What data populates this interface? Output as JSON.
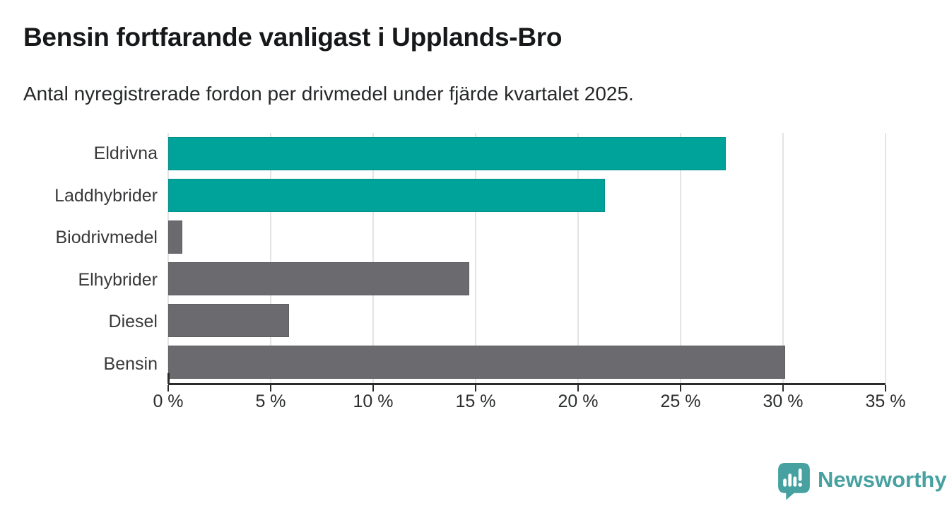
{
  "header": {
    "title": "Bensin fortfarande vanligast i Upplands-Bro",
    "subtitle": "Antal nyregistrerade fordon per drivmedel under fjärde kvartalet 2025."
  },
  "chart_data": {
    "type": "bar",
    "orientation": "horizontal",
    "title": "Bensin fortfarande vanligast i Upplands-Bro",
    "subtitle": "Antal nyregistrerade fordon per drivmedel under fjärde kvartalet 2025.",
    "categories": [
      "Eldrivna",
      "Laddhybrider",
      "Biodrivmedel",
      "Elhybrider",
      "Diesel",
      "Bensin"
    ],
    "values": [
      27.2,
      21.3,
      0.7,
      14.7,
      5.9,
      30.1
    ],
    "unit": "%",
    "bar_colors": [
      "#00a39a",
      "#00a39a",
      "#6a6a6f",
      "#6a6a6f",
      "#6a6a6f",
      "#6a6a6f"
    ],
    "xlim": [
      0,
      35
    ],
    "x_ticks": [
      0,
      5,
      10,
      15,
      20,
      25,
      30,
      35
    ],
    "x_tick_labels": [
      "0 %",
      "5 %",
      "10 %",
      "15 %",
      "20 %",
      "25 %",
      "30 %",
      "35 %"
    ],
    "grid": true,
    "legend": "none"
  },
  "colors": {
    "teal": "#00a39a",
    "gray": "#6a6a6f",
    "gridline": "#e4e4e4",
    "axis": "#2b2b2b",
    "brand_teal": "#47a1a1"
  },
  "branding": {
    "logo_text": "Newsworthy",
    "logo_icon": "newsworthy-bubble-chart-icon"
  }
}
